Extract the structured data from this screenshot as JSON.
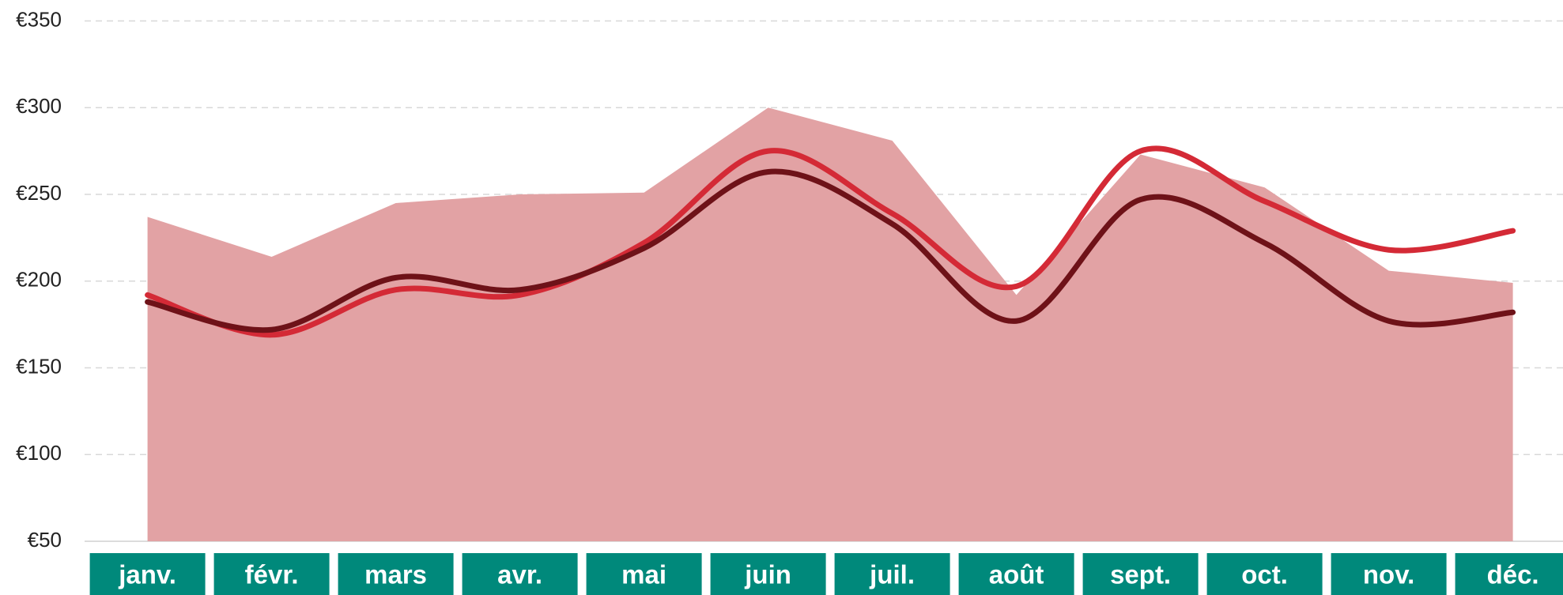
{
  "chart_data": {
    "type": "line",
    "categories": [
      "janv.",
      "févr.",
      "mars",
      "avr.",
      "mai",
      "juin",
      "juil.",
      "août",
      "sept.",
      "oct.",
      "nov.",
      "déc."
    ],
    "series": [
      {
        "type": "area",
        "color": "#e2a2a4",
        "smooth": false,
        "values": [
          237,
          214,
          245,
          250,
          251,
          300,
          281,
          192,
          273,
          254,
          206,
          199
        ]
      },
      {
        "type": "line",
        "color": "#d42a36",
        "smooth": true,
        "values": [
          192,
          169,
          195,
          192,
          222,
          275,
          239,
          197,
          275,
          246,
          218,
          229
        ]
      },
      {
        "type": "line",
        "color": "#6e1218",
        "smooth": true,
        "values": [
          188,
          172,
          202,
          195,
          219,
          263,
          233,
          177,
          247,
          222,
          177,
          182
        ]
      }
    ],
    "ylim": [
      50,
      350
    ],
    "yticks": [
      {
        "value": 50,
        "label": "€50"
      },
      {
        "value": 100,
        "label": "€100"
      },
      {
        "value": 150,
        "label": "€150"
      },
      {
        "value": 200,
        "label": "€200"
      },
      {
        "value": 250,
        "label": "€250"
      },
      {
        "value": 300,
        "label": "€300"
      },
      {
        "value": 350,
        "label": "€350"
      }
    ],
    "grid": true,
    "category_color": "#00897b"
  }
}
